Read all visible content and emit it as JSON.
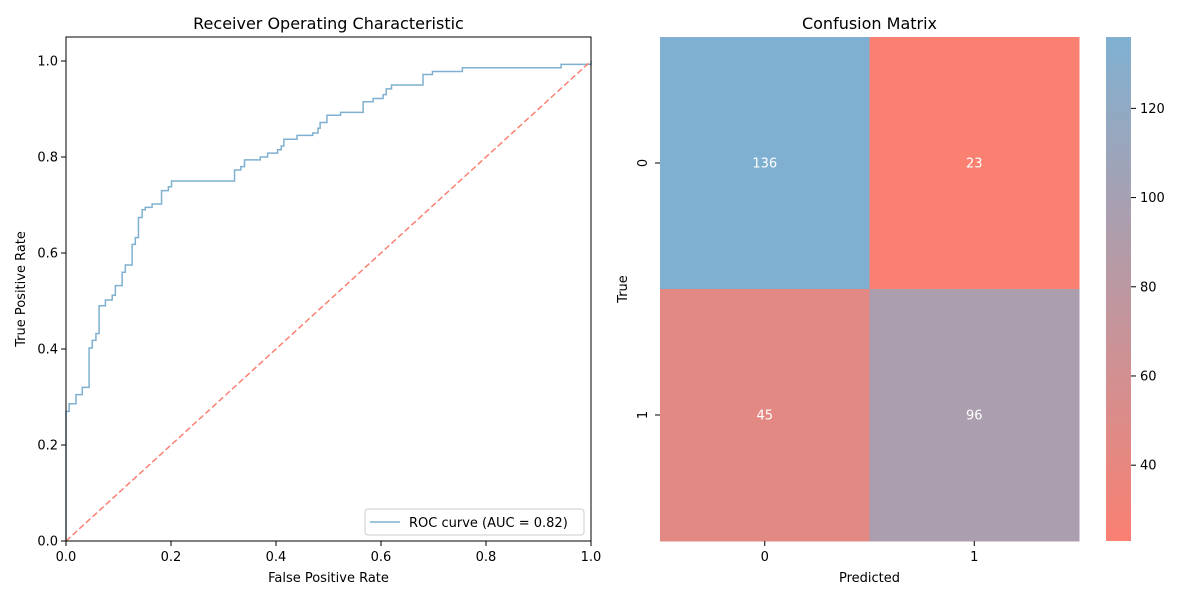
{
  "chart_data": [
    {
      "type": "line",
      "title": "Receiver Operating Characteristic",
      "xlabel": "False Positive Rate",
      "ylabel": "True Positive Rate",
      "xlim": [
        0.0,
        1.0
      ],
      "ylim": [
        0.0,
        1.05
      ],
      "xticks": [
        "0.0",
        "0.2",
        "0.4",
        "0.6",
        "0.8",
        "1.0"
      ],
      "yticks": [
        "0.0",
        "0.2",
        "0.4",
        "0.6",
        "0.8",
        "1.0"
      ],
      "grid": false,
      "legend_position": "bottom-right",
      "series": [
        {
          "name": "ROC curve (AUC = 0.82)",
          "color": "#7fb0d1",
          "step": true,
          "points": [
            [
              0.0,
              0.0
            ],
            [
              0.0,
              0.27
            ],
            [
              0.006,
              0.27
            ],
            [
              0.006,
              0.286
            ],
            [
              0.019,
              0.286
            ],
            [
              0.019,
              0.305
            ],
            [
              0.031,
              0.305
            ],
            [
              0.031,
              0.32
            ],
            [
              0.044,
              0.32
            ],
            [
              0.044,
              0.402
            ],
            [
              0.05,
              0.402
            ],
            [
              0.05,
              0.418
            ],
            [
              0.057,
              0.418
            ],
            [
              0.057,
              0.432
            ],
            [
              0.063,
              0.432
            ],
            [
              0.063,
              0.49
            ],
            [
              0.075,
              0.49
            ],
            [
              0.075,
              0.502
            ],
            [
              0.088,
              0.502
            ],
            [
              0.088,
              0.512
            ],
            [
              0.094,
              0.512
            ],
            [
              0.094,
              0.532
            ],
            [
              0.107,
              0.532
            ],
            [
              0.107,
              0.56
            ],
            [
              0.113,
              0.56
            ],
            [
              0.113,
              0.575
            ],
            [
              0.126,
              0.575
            ],
            [
              0.126,
              0.618
            ],
            [
              0.132,
              0.618
            ],
            [
              0.132,
              0.632
            ],
            [
              0.138,
              0.632
            ],
            [
              0.138,
              0.674
            ],
            [
              0.145,
              0.674
            ],
            [
              0.145,
              0.69
            ],
            [
              0.151,
              0.69
            ],
            [
              0.151,
              0.695
            ],
            [
              0.164,
              0.695
            ],
            [
              0.164,
              0.702
            ],
            [
              0.182,
              0.702
            ],
            [
              0.182,
              0.73
            ],
            [
              0.195,
              0.73
            ],
            [
              0.195,
              0.738
            ],
            [
              0.201,
              0.738
            ],
            [
              0.201,
              0.75
            ],
            [
              0.321,
              0.75
            ],
            [
              0.321,
              0.773
            ],
            [
              0.333,
              0.773
            ],
            [
              0.333,
              0.78
            ],
            [
              0.34,
              0.78
            ],
            [
              0.34,
              0.794
            ],
            [
              0.37,
              0.794
            ],
            [
              0.37,
              0.8
            ],
            [
              0.384,
              0.8
            ],
            [
              0.384,
              0.808
            ],
            [
              0.403,
              0.808
            ],
            [
              0.403,
              0.815
            ],
            [
              0.41,
              0.815
            ],
            [
              0.41,
              0.823
            ],
            [
              0.415,
              0.823
            ],
            [
              0.415,
              0.837
            ],
            [
              0.44,
              0.837
            ],
            [
              0.44,
              0.845
            ],
            [
              0.47,
              0.845
            ],
            [
              0.47,
              0.85
            ],
            [
              0.48,
              0.85
            ],
            [
              0.48,
              0.86
            ],
            [
              0.484,
              0.86
            ],
            [
              0.484,
              0.872
            ],
            [
              0.497,
              0.872
            ],
            [
              0.497,
              0.887
            ],
            [
              0.523,
              0.887
            ],
            [
              0.523,
              0.893
            ],
            [
              0.566,
              0.893
            ],
            [
              0.566,
              0.915
            ],
            [
              0.585,
              0.915
            ],
            [
              0.585,
              0.922
            ],
            [
              0.604,
              0.922
            ],
            [
              0.604,
              0.93
            ],
            [
              0.61,
              0.93
            ],
            [
              0.61,
              0.942
            ],
            [
              0.62,
              0.942
            ],
            [
              0.62,
              0.95
            ],
            [
              0.68,
              0.95
            ],
            [
              0.68,
              0.972
            ],
            [
              0.698,
              0.972
            ],
            [
              0.698,
              0.978
            ],
            [
              0.755,
              0.978
            ],
            [
              0.755,
              0.986
            ],
            [
              0.943,
              0.986
            ],
            [
              0.943,
              0.993
            ],
            [
              1.0,
              0.993
            ],
            [
              1.0,
              1.0
            ]
          ]
        },
        {
          "name": "",
          "color": "#fa8072",
          "dashed": true,
          "points": [
            [
              0.0,
              0.0
            ],
            [
              1.0,
              1.0
            ]
          ]
        }
      ]
    },
    {
      "type": "heatmap",
      "title": "Confusion Matrix",
      "xlabel": "Predicted",
      "ylabel": "True",
      "x_categories": [
        "0",
        "1"
      ],
      "y_categories": [
        "0",
        "1"
      ],
      "values": [
        [
          136,
          23
        ],
        [
          45,
          96
        ]
      ],
      "colorbar": {
        "min": 23,
        "max": 136,
        "ticks": [
          "40",
          "60",
          "80",
          "100",
          "120"
        ],
        "low_color": "#fa8072",
        "high_color": "#7fb0d1"
      }
    }
  ]
}
